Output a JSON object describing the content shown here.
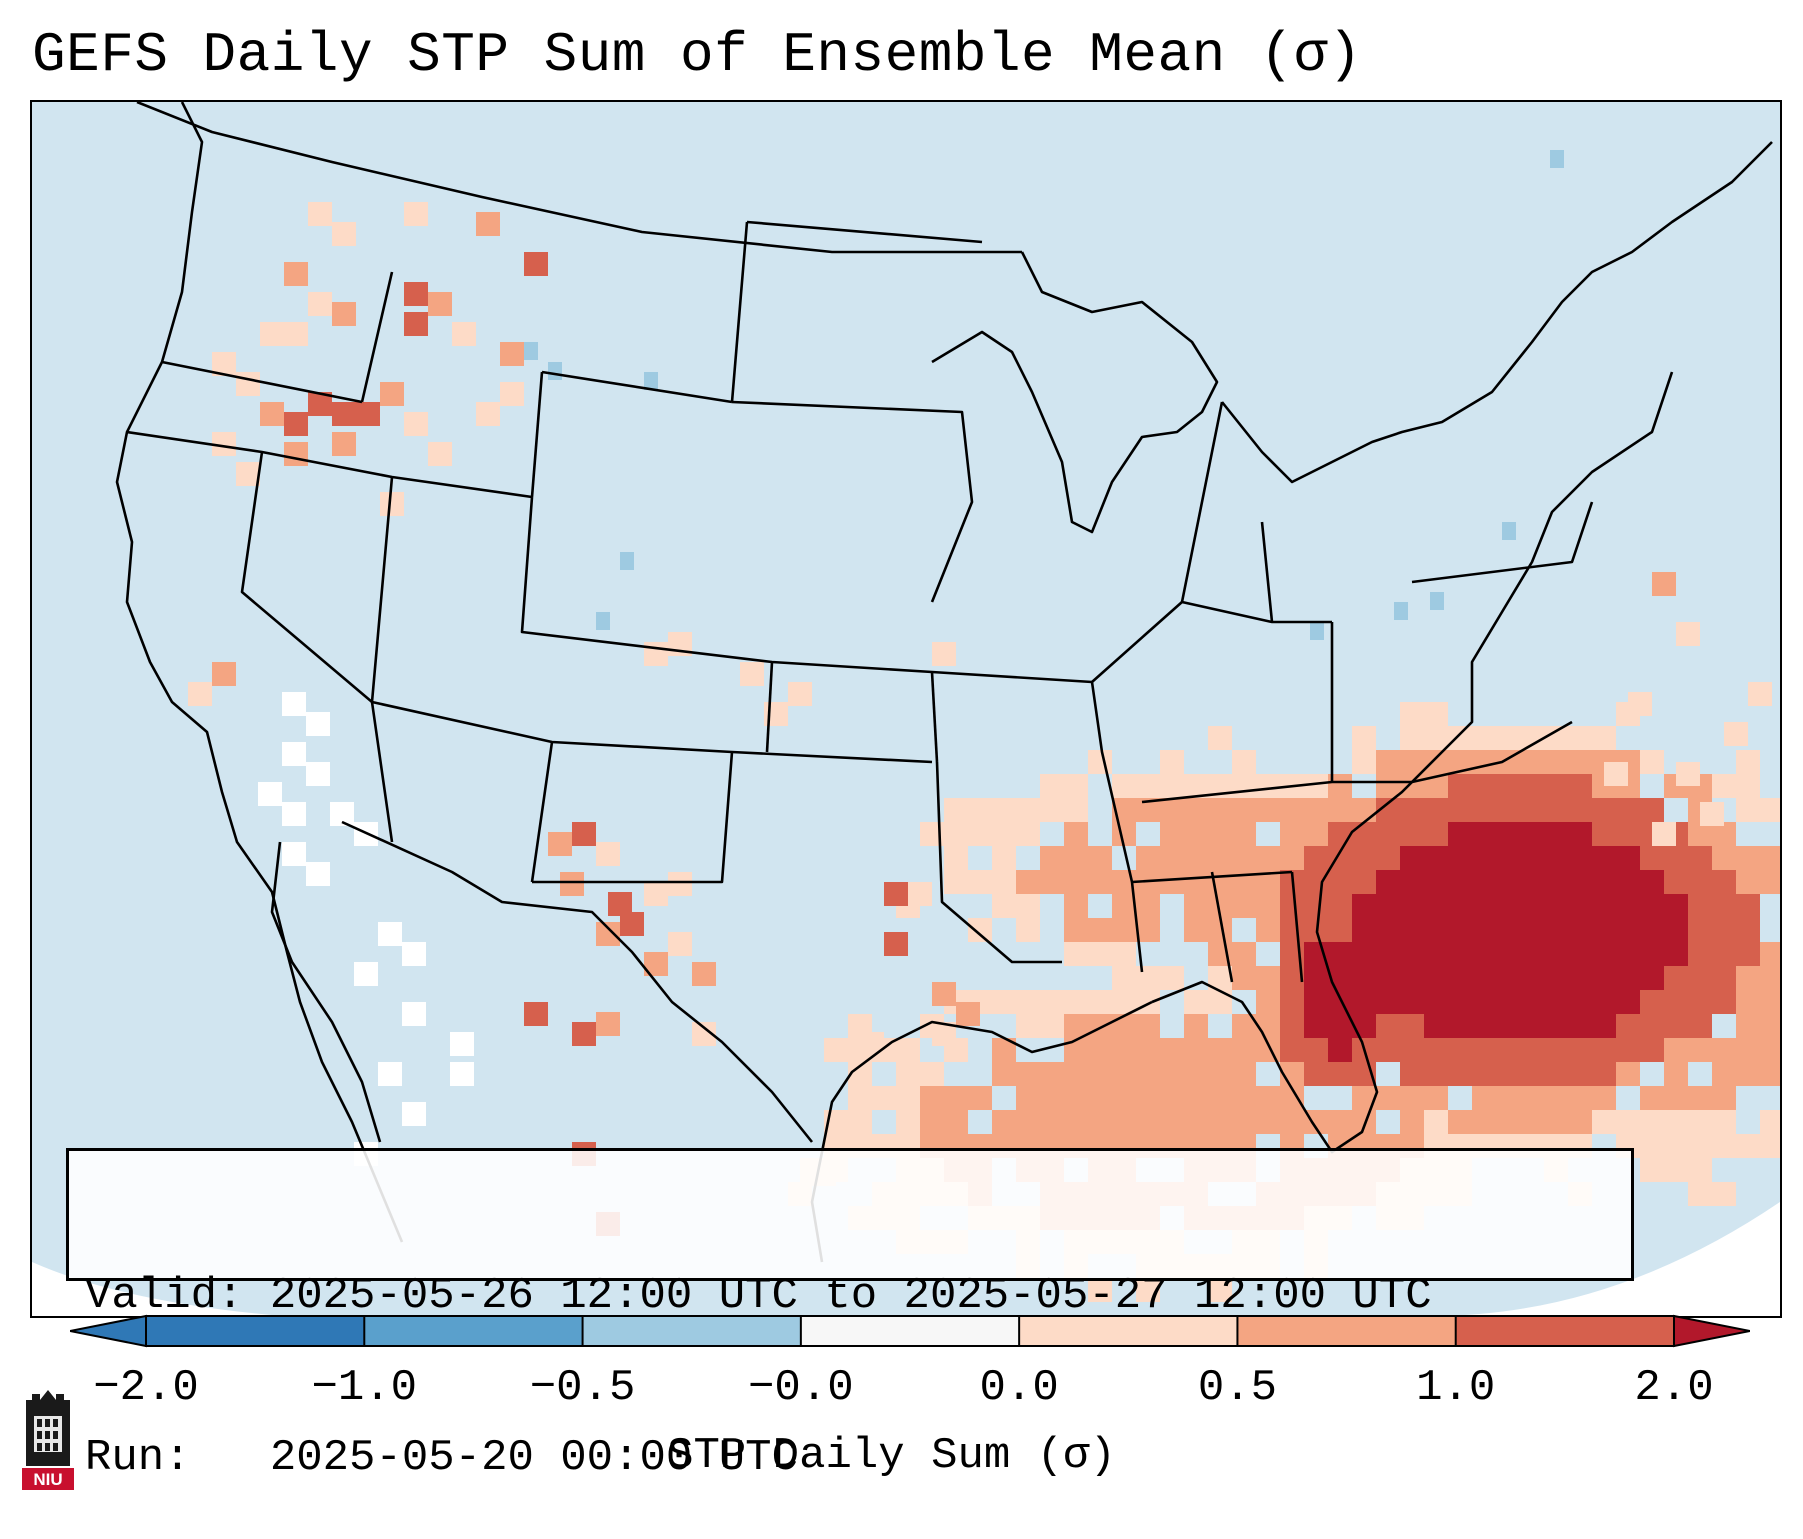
{
  "figure": {
    "title": "GEFS Daily STP Sum of Ensemble Mean (σ)",
    "valid_line": "Valid: 2025-05-26 12:00 UTC to 2025-05-27 12:00 UTC",
    "run_line": "Run:   2025-05-20 00:00 UTC",
    "logo_text": "NIU"
  },
  "colorbar": {
    "label": "STP Daily Sum (σ)",
    "ticks": [
      "−2.0",
      "−1.0",
      "−0.5",
      "−0.0",
      "0.0",
      "0.5",
      "1.0",
      "2.0"
    ],
    "colors": [
      "#2f78b6",
      "#5aa0cc",
      "#9ecae1",
      "#d1e5f0",
      "#fddbc7",
      "#f4a582",
      "#d6604d",
      "#b2182b"
    ],
    "background_color": "#d1e5f0"
  },
  "map_data": {
    "region": "Continental United States, northern Mexico, Gulf of Mexico, western Atlantic",
    "field": "STP daily sum anomaly (σ)",
    "highlights": [
      {
        "area": "Florida / Georgia / South Carolina coast and western Atlantic",
        "value": 1.5
      },
      {
        "area": "Gulf of Mexico and Gulf coast states",
        "value": 0.5
      },
      {
        "area": "Southeast US (AL, GA, MS, TN)",
        "value": 0.25
      },
      {
        "area": "New Mexico",
        "value": 0.75
      },
      {
        "area": "Pacific Northwest (OR, WA, ID)",
        "value": 0.6
      },
      {
        "area": "Baja California / Arizona (white cells)",
        "value": -0.25
      }
    ]
  }
}
